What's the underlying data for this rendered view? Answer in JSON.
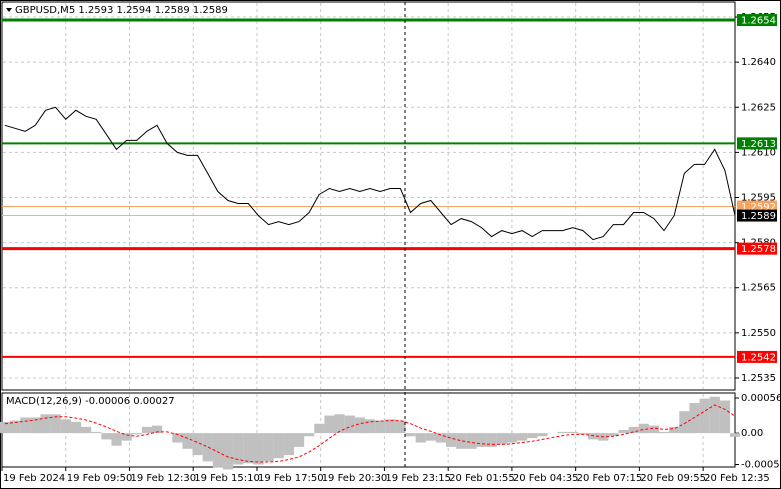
{
  "chart_data": [
    {
      "type": "line",
      "title": "GBPUSD,M5  1.2593 1.2594 1.2589 1.2589",
      "color": "#000000",
      "x": [
        2,
        9,
        16,
        23,
        30,
        37,
        44,
        51,
        58,
        65,
        72,
        79,
        86,
        93,
        100,
        107,
        114,
        121,
        128,
        135,
        142,
        149,
        156,
        163,
        170,
        177,
        184,
        191,
        198,
        205,
        212,
        219,
        226,
        233,
        240,
        247,
        254,
        261,
        268,
        275,
        282,
        289,
        296,
        303,
        310,
        317,
        324,
        331,
        338,
        345,
        352,
        359,
        366,
        373,
        380,
        387,
        394,
        401,
        408,
        415,
        422,
        429,
        436,
        443,
        450,
        457,
        464,
        471,
        478,
        485,
        492,
        499,
        506
      ],
      "values": [
        1.2619,
        1.2618,
        1.2617,
        1.2619,
        1.2624,
        1.2625,
        1.2621,
        1.2624,
        1.2622,
        1.2621,
        1.2616,
        1.2611,
        1.2614,
        1.2614,
        1.2617,
        1.2619,
        1.2613,
        1.261,
        1.2609,
        1.2609,
        1.2603,
        1.2597,
        1.2594,
        1.2593,
        1.2593,
        1.2589,
        1.2586,
        1.2587,
        1.2586,
        1.2587,
        1.259,
        1.2596,
        1.2598,
        1.2597,
        1.2598,
        1.2597,
        1.2598,
        1.2597,
        1.2598,
        1.2598,
        1.259,
        1.2593,
        1.2594,
        1.259,
        1.2586,
        1.2588,
        1.2587,
        1.2585,
        1.2582,
        1.2584,
        1.2583,
        1.2584,
        1.2582,
        1.2584,
        1.2584,
        1.2584,
        1.2585,
        1.2584,
        1.2581,
        1.2582,
        1.2586,
        1.2586,
        1.259,
        1.259,
        1.2588,
        1.2584,
        1.2589,
        1.2603,
        1.2606,
        1.2606,
        1.2611,
        1.2604,
        1.2589
      ],
      "xlim": [
        0,
        506
      ],
      "xticks": [
        {
          "value": 0,
          "label": "19 Feb 2024"
        },
        {
          "value": 44,
          "label": "19 Feb 09:50"
        },
        {
          "value": 88,
          "label": "19 Feb 12:30"
        },
        {
          "value": 132,
          "label": "19 Feb 15:10"
        },
        {
          "value": 176,
          "label": "19 Feb 17:50"
        },
        {
          "value": 220,
          "label": "19 Feb 20:30"
        },
        {
          "value": 264,
          "label": "19 Feb 23:15"
        },
        {
          "value": 308,
          "label": "20 Feb 01:55"
        },
        {
          "value": 352,
          "label": "20 Feb 04:35"
        },
        {
          "value": 396,
          "label": "20 Feb 07:15"
        },
        {
          "value": 440,
          "label": "20 Feb 09:55"
        },
        {
          "value": 484,
          "label": "20 Feb 12:35"
        }
      ],
      "ylim": [
        1.2531,
        1.266
      ],
      "yticks": [
        1.2535,
        {
          "value": 1.255,
          "label": "1.2550"
        },
        1.2565,
        {
          "value": 1.258,
          "label": "1.2580"
        },
        1.2595,
        {
          "value": 1.261,
          "label": "1.2610"
        },
        1.2625,
        {
          "value": 1.264,
          "label": "1.2640"
        },
        1.2655
      ],
      "grid": true,
      "levels": [
        {
          "value": 1.2654,
          "color": "#008000"
        },
        {
          "value": 1.2613,
          "color": "#008000"
        },
        {
          "value": 1.2578,
          "color": "#ff0000"
        },
        {
          "value": 1.2542,
          "color": "#ff0000"
        },
        {
          "value": 1.2592,
          "color": "#f4a460"
        },
        {
          "value": 1.2589,
          "color": "#c0c0c0",
          "box_color": "#000000"
        }
      ]
    },
    {
      "type": "bar",
      "title": "MACD(12,26,9) -0.00006 0.00027",
      "series": [
        {
          "color": "#c0c0c0",
          "values": [
            0.00018,
            0.0002,
            0.00025,
            0.00025,
            0.0003,
            0.0003,
            0.00022,
            0.00018,
            0.0001,
            2e-05,
            -0.0001,
            -0.0002,
            -0.00012,
            -2e-05,
            0.0001,
            0.00012,
            0,
            -0.00015,
            -0.00025,
            -0.00035,
            -0.00045,
            -0.00055,
            -0.00058,
            -0.0005,
            -0.00048,
            -0.0005,
            -0.00045,
            -0.0004,
            -0.00035,
            -0.00022,
            -5e-05,
            0.00015,
            0.00028,
            0.0003,
            0.00028,
            0.00025,
            0.00022,
            0.0002,
            0.00022,
            0.0002,
            -5e-05,
            -0.00015,
            -0.00012,
            -0.00015,
            -0.00022,
            -0.00025,
            -0.00025,
            -0.00022,
            -0.00022,
            -0.00018,
            -0.00015,
            -0.00012,
            -8e-05,
            -5e-05,
            0,
            2e-05,
            2e-05,
            -2e-05,
            -0.0001,
            -0.00012,
            -5e-05,
            5e-05,
            0.0001,
            0.00015,
            0.00012,
            2e-05,
            0.0001,
            0.00035,
            0.00048,
            0.00055,
            0.00058,
            0.00052,
            -6e-05
          ]
        },
        {
          "color": "#ff0000",
          "values": [
            0.00015,
            0.00017,
            0.00019,
            0.00021,
            0.00024,
            0.00026,
            0.00026,
            0.00024,
            0.00021,
            0.00016,
            0.0001,
            3e-05,
            -3e-05,
            -5e-05,
            -2e-05,
            2e-05,
            2e-05,
            -2e-05,
            -8e-05,
            -0.00015,
            -0.00022,
            -0.0003,
            -0.00038,
            -0.00042,
            -0.00045,
            -0.00046,
            -0.00046,
            -0.00045,
            -0.00042,
            -0.00038,
            -0.0003,
            -0.0002,
            -8e-05,
            3e-05,
            0.0001,
            0.00015,
            0.00018,
            0.00019,
            0.0002,
            0.0002,
            0.00015,
            8e-05,
            3e-05,
            -3e-05,
            -8e-05,
            -0.00012,
            -0.00015,
            -0.00017,
            -0.00018,
            -0.00018,
            -0.00017,
            -0.00015,
            -0.00013,
            -0.0001,
            -7e-05,
            -4e-05,
            -2e-05,
            -2e-05,
            -4e-05,
            -6e-05,
            -5e-05,
            -2e-05,
            2e-05,
            6e-05,
            8e-05,
            6e-05,
            7e-05,
            0.00015,
            0.00025,
            0.00035,
            0.00045,
            0.00038,
            0.00027
          ]
        }
      ],
      "ylim": [
        -0.00054,
        0.00064
      ],
      "yticks": [
        -0.0005,
        {
          "value": 0,
          "label": "0.00"
        },
        0.00056
      ]
    }
  ]
}
